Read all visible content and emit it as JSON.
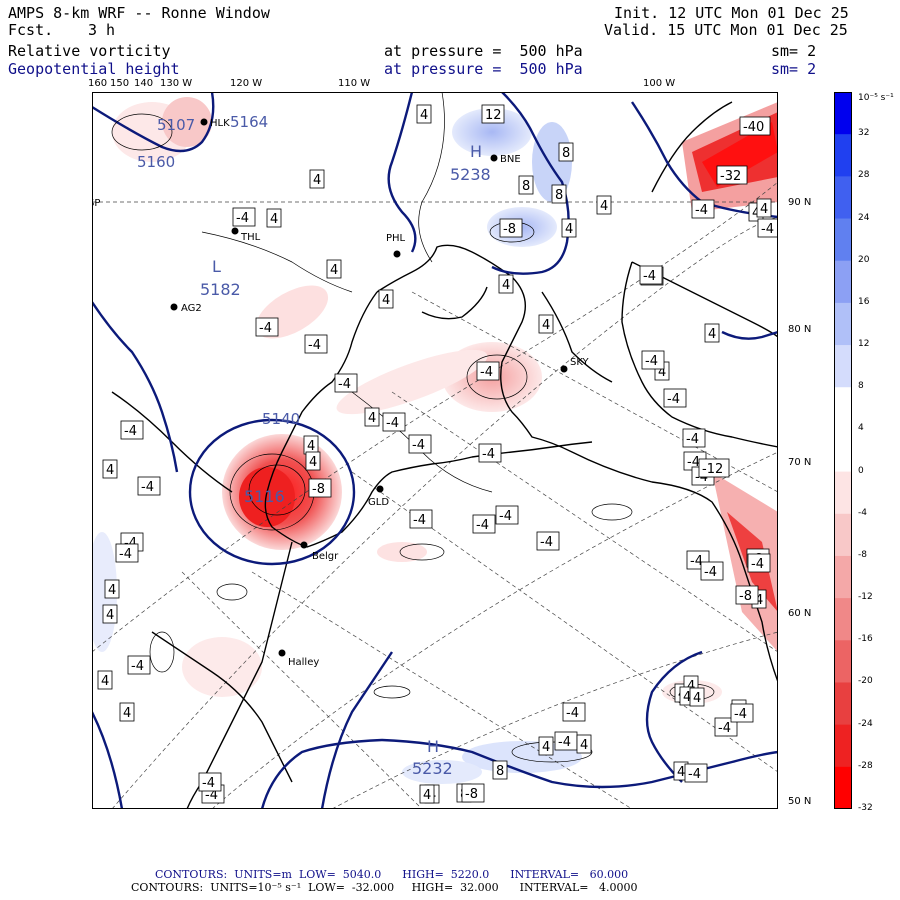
{
  "header": {
    "title": "AMPS 8-km WRF -- Ronne Window",
    "fcst_label": "Fcst.",
    "fcst_value": "3 h",
    "init": "Init. 12 UTC Mon 01 Dec 25",
    "valid": "Valid. 15 UTC Mon 01 Dec 25",
    "field1": "Relative vorticity",
    "field2": "Geopotential height",
    "level1": "at pressure =  500 hPa",
    "level2": "at pressure =  500 hPa",
    "sm1": "sm= 2",
    "sm2": "sm= 2"
  },
  "axes": {
    "top_lon": [
      "160",
      "150",
      "140",
      "130 W",
      "120 W",
      "110 W",
      "100 W"
    ],
    "right_lat": [
      "90 N",
      "80 N",
      "70 N",
      "60 N",
      "50 N"
    ]
  },
  "stations": [
    "HLK",
    "BNE",
    "THL",
    "PHL",
    "AG2",
    "SKY",
    "GLD",
    "Belgr",
    "Halley",
    "SP"
  ],
  "centers": {
    "H1": {
      "sym": "H",
      "val": "5238"
    },
    "L1": {
      "sym": "L",
      "val": "5182"
    },
    "L2": {
      "sym": "L",
      "val": "5116"
    },
    "H2": {
      "sym": "H",
      "val": "5232"
    },
    "v1": "5107",
    "v2": "5164",
    "v3": "5160",
    "v4": "5140"
  },
  "colorbar": {
    "unit": "10⁻⁵ s⁻¹",
    "labels": [
      "32",
      "28",
      "24",
      "20",
      "16",
      "12",
      "8",
      "4",
      "0",
      "-4",
      "-8",
      "-12",
      "-16",
      "-20",
      "-24",
      "-28",
      "-32"
    ],
    "colors": [
      "#0000ee",
      "#2040f0",
      "#4060f0",
      "#6080f0",
      "#8ca0f4",
      "#b0c0f8",
      "#d4dcfc",
      "#ffffff",
      "#ffffff",
      "#fde4e4",
      "#f8c8c8",
      "#f4a8a8",
      "#f08888",
      "#ec6464",
      "#e84040",
      "#ee2222",
      "#ff0000"
    ]
  },
  "footer": {
    "line1": "CONTOURS:  UNITS=m  LOW=  5040.0      HIGH=  5220.0      INTERVAL=   60.000",
    "line2": "CONTOURS:  UNITS=10⁻⁵ s⁻¹  LOW=  -32.000     HIGH=  32.000      INTERVAL=   4.0000"
  },
  "boxes": [
    "4",
    "12",
    "8",
    "8",
    "8",
    "4",
    "4",
    "4",
    "4",
    "-8",
    "-4",
    "4",
    "4",
    "4",
    "4",
    "-4",
    "4",
    "-4",
    "-4",
    "-4",
    "-4",
    "-4",
    "-4",
    "4",
    "-4",
    "-4",
    "4",
    "-4",
    "4",
    "4",
    "-8",
    "-4",
    "-4",
    "-4",
    "-4",
    "4",
    "4",
    "-4",
    "-4",
    "-4",
    "-4",
    "-4",
    "-4",
    "4",
    "4",
    "-4",
    "-4",
    "-4",
    "4",
    "-4",
    "4",
    "-4",
    "4",
    "4",
    "8",
    "4",
    "4",
    "4",
    "4",
    "4",
    "8",
    "4",
    "-4",
    "-32",
    "-40",
    "-4",
    "-4",
    "4",
    "-4",
    "-4",
    "-8",
    "-12",
    "-4",
    "-8",
    "-4",
    "-4",
    "4",
    "-4",
    "4",
    "4",
    "-4",
    "-8"
  ]
}
